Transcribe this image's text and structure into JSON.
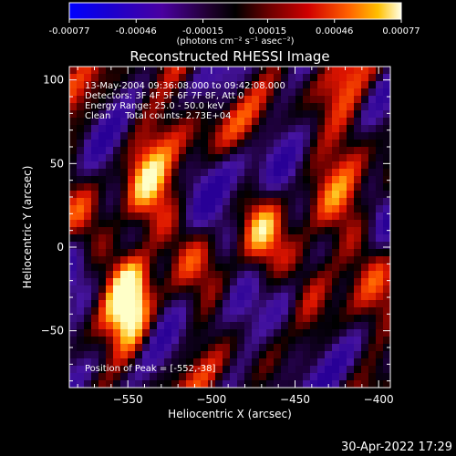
{
  "chart_data": {
    "type": "heatmap",
    "title": "Reconstructed RHESSI Image",
    "xlabel": "Heliocentric X (arcsec)",
    "ylabel": "Heliocentric Y (arcsec)",
    "xlim": [
      -585,
      -393
    ],
    "ylim": [
      -84,
      108
    ],
    "x_ticks": [
      -550,
      -500,
      -450,
      -400
    ],
    "y_ticks": [
      -50,
      0,
      50,
      100
    ],
    "colorbar": {
      "range": [
        -0.00077,
        0.00077
      ],
      "tick_values": [
        -0.00077,
        -0.00046,
        -0.00015,
        0.00015,
        0.00046,
        0.00077
      ],
      "tick_labels": [
        "-0.00077",
        "-0.00046",
        "-0.00015",
        "0.00015",
        "0.00046",
        "0.00077"
      ],
      "units_label": "(photons cm⁻² s⁻¹ asec⁻²)"
    },
    "annotations": [
      "13-May-2004 09:36:08.000 to 09:42:08.000",
      "Detectors: 3F 4F 5F 6F 7F 8F, Att 0",
      "Energy Range: 25.0 - 50.0 keV",
      "Clean     Total counts: 2.73E+04"
    ],
    "peak_label": "Position of Peak = [-552,-38]",
    "peak": [
      -552,
      -38
    ],
    "grid": false
  },
  "footer": {
    "timestamp": "30-Apr-2022 17:29"
  }
}
